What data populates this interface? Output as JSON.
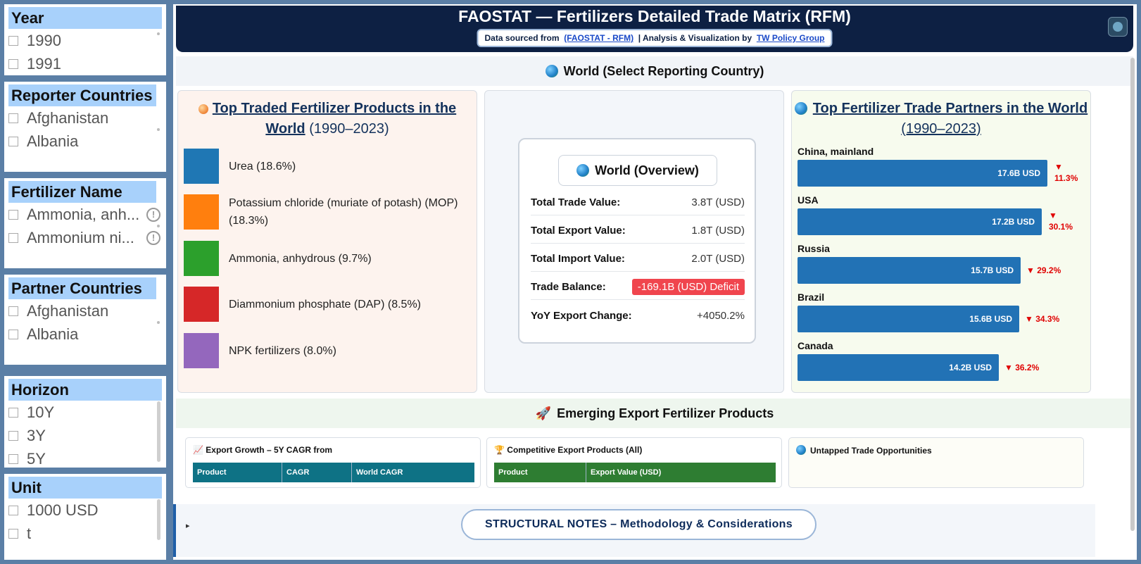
{
  "sidebar": {
    "year": {
      "title": "Year",
      "options": [
        "1990",
        "1991"
      ]
    },
    "reporter": {
      "title": "Reporter Countries",
      "options": [
        "Afghanistan",
        "Albania"
      ]
    },
    "fertilizer": {
      "title": "Fertilizer Name",
      "options": [
        "Ammonia, anh...",
        "Ammonium ni..."
      ]
    },
    "partner": {
      "title": "Partner Countries",
      "options": [
        "Afghanistan",
        "Albania"
      ]
    },
    "horizon": {
      "title": "Horizon",
      "options": [
        "10Y",
        "3Y",
        "5Y"
      ]
    },
    "unit": {
      "title": "Unit",
      "options": [
        "1000 USD",
        "t"
      ]
    }
  },
  "header": {
    "title": "FAOSTAT — Fertilizers Detailed Trade Matrix (RFM)",
    "source_prefix": "Data sourced from",
    "source_link": "(FAOSTAT - RFM)",
    "analysis_prefix": "| Analysis & Visualization by",
    "analysis_link": "TW Policy Group"
  },
  "world_banner": "World (Select Reporting Country)",
  "products_card": {
    "title_link": "Top Traded Fertilizer Products in the World",
    "years": "(1990–2023)",
    "items": [
      {
        "label": "Urea (18.6%)",
        "color": "#1f77b4"
      },
      {
        "label": "Potassium chloride (muriate of potash) (MOP) (18.3%)",
        "color": "#ff7f0e"
      },
      {
        "label": "Ammonia, anhydrous (9.7%)",
        "color": "#2ca02c"
      },
      {
        "label": "Diammonium phosphate (DAP) (8.5%)",
        "color": "#d62728"
      },
      {
        "label": "NPK fertilizers (8.0%)",
        "color": "#9467bd"
      }
    ]
  },
  "overview": {
    "title": "World (Overview)",
    "rows": [
      {
        "key": "Total Trade Value:",
        "value": "3.8T (USD)"
      },
      {
        "key": "Total Export Value:",
        "value": "1.8T (USD)"
      },
      {
        "key": "Total Import Value:",
        "value": "2.0T (USD)"
      },
      {
        "key": "Trade Balance:",
        "value": "-169.1B (USD) Deficit"
      },
      {
        "key": "YoY Export Change:",
        "value": "+4050.2%"
      }
    ]
  },
  "partners_card": {
    "title_link": "Top Fertilizer Trade Partners in the World",
    "years": "(1990–2023)",
    "items": [
      {
        "name": "China, mainland",
        "value_label": "17.6B USD",
        "share": 1.0,
        "change": "▼ 11.3%"
      },
      {
        "name": "USA",
        "value_label": "17.2B USD",
        "share": 0.977,
        "change": "▼ 30.1%"
      },
      {
        "name": "Russia",
        "value_label": "15.7B USD",
        "share": 0.892,
        "change": "▼ 29.2%"
      },
      {
        "name": "Brazil",
        "value_label": "15.6B USD",
        "share": 0.886,
        "change": "▼ 34.3%"
      },
      {
        "name": "Canada",
        "value_label": "14.2B USD",
        "share": 0.807,
        "change": "▼ 36.2%"
      }
    ]
  },
  "emerging": {
    "title": "Emerging Export Fertilizer Products",
    "growth": {
      "title": "Export Growth – 5Y CAGR from",
      "columns": [
        "Product",
        "CAGR",
        "World CAGR"
      ],
      "header_color": "#0e7285"
    },
    "competitive": {
      "title": "Competitive Export Products (All)",
      "columns": [
        "Product",
        "Export Value (USD)"
      ],
      "header_color": "#2e7d32"
    },
    "untapped": {
      "title": "Untapped Trade Opportunities"
    }
  },
  "notes": {
    "toggle": "▸",
    "label": "STRUCTURAL NOTES – Methodology & Considerations"
  }
}
